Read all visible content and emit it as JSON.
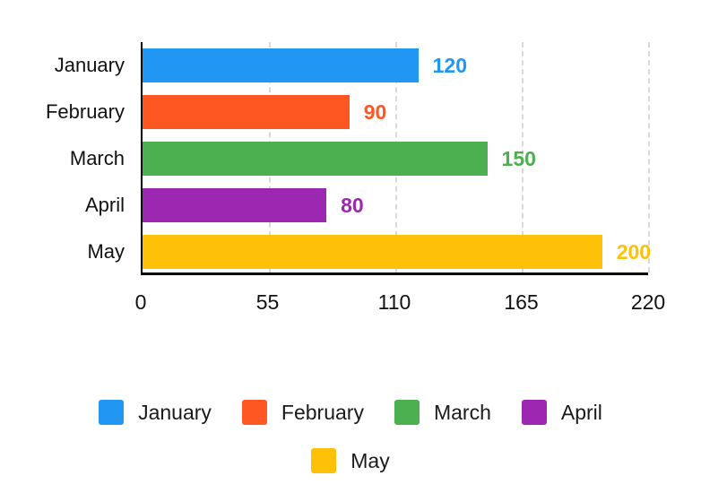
{
  "chart_data": {
    "type": "bar",
    "orientation": "horizontal",
    "title": "",
    "xlabel": "",
    "ylabel": "",
    "categories": [
      "January",
      "February",
      "March",
      "April",
      "May"
    ],
    "values": [
      120,
      90,
      150,
      80,
      200
    ],
    "value_labels": [
      "120",
      "90",
      "150",
      "80",
      "200"
    ],
    "colors": [
      "#2196F3",
      "#FF5722",
      "#4CAF50",
      "#9C27B0",
      "#FFC107"
    ],
    "xlim": [
      0,
      220
    ],
    "x_ticks": [
      0,
      55,
      110,
      165,
      220
    ],
    "x_tick_labels": [
      "0",
      "55",
      "110",
      "165",
      "220"
    ],
    "grid": "vertical dashed gridlines at each x tick except 0",
    "legend_position": "bottom"
  },
  "legend": {
    "items": [
      {
        "label": "January",
        "color": "#2196F3"
      },
      {
        "label": "February",
        "color": "#FF5722"
      },
      {
        "label": "March",
        "color": "#4CAF50"
      },
      {
        "label": "April",
        "color": "#9C27B0"
      },
      {
        "label": "May",
        "color": "#FFC107"
      }
    ]
  },
  "styles": {
    "background": "#ffffff",
    "axis_color": "#000000",
    "grid_color": "#d9d9d9",
    "tick_text_color": "#111111",
    "category_text_color": "#111111",
    "legend_text_color": "#1a1a1a"
  }
}
